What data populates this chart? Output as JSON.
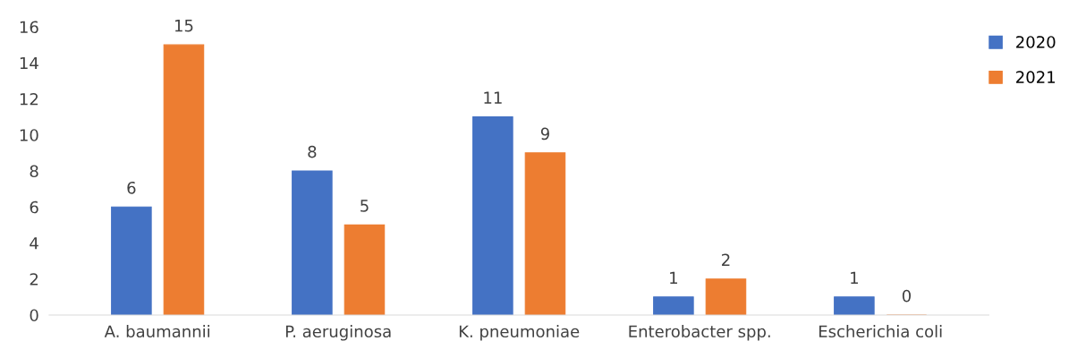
{
  "chart_data": {
    "type": "bar",
    "categories": [
      "A. baumannii",
      "P. aeruginosa",
      "K. pneumoniae",
      "Enterobacter spp.",
      "Escherichia coli"
    ],
    "series": [
      {
        "name": "2020",
        "color": "#4472c4",
        "values": [
          6,
          8,
          11,
          1,
          1
        ]
      },
      {
        "name": "2021",
        "color": "#ed7d31",
        "values": [
          15,
          5,
          9,
          2,
          0
        ]
      }
    ],
    "ylim": [
      0,
      16
    ],
    "yticks": [
      0,
      2,
      4,
      6,
      8,
      10,
      12,
      14,
      16
    ],
    "grid": false,
    "legend": "top right",
    "data_labels": true
  }
}
